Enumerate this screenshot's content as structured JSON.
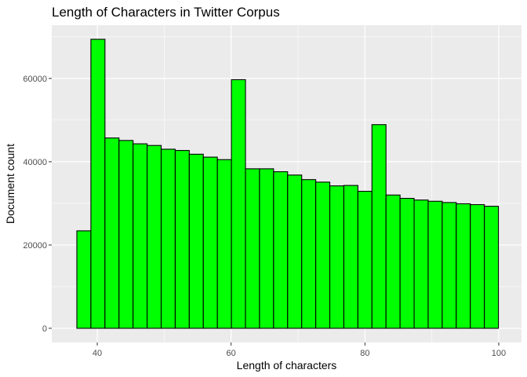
{
  "chart_data": {
    "type": "bar",
    "title": "Length of Characters in Twitter Corpus",
    "xlabel": "Length of characters",
    "ylabel": "Document count",
    "xlim": [
      33.2,
      103.4
    ],
    "ylim": [
      -3400,
      72800
    ],
    "x_ticks": [
      40,
      60,
      80,
      100
    ],
    "y_ticks": [
      0,
      20000,
      40000,
      60000
    ],
    "grid": true,
    "bin_width": 2.1,
    "bins": [
      {
        "x": 38.0,
        "value": 23400
      },
      {
        "x": 40.1,
        "value": 69400
      },
      {
        "x": 42.2,
        "value": 45700
      },
      {
        "x": 44.3,
        "value": 45100
      },
      {
        "x": 46.4,
        "value": 44300
      },
      {
        "x": 48.5,
        "value": 43900
      },
      {
        "x": 50.6,
        "value": 43000
      },
      {
        "x": 52.7,
        "value": 42700
      },
      {
        "x": 54.8,
        "value": 41800
      },
      {
        "x": 56.9,
        "value": 41100
      },
      {
        "x": 59.0,
        "value": 40500
      },
      {
        "x": 61.1,
        "value": 59700
      },
      {
        "x": 63.2,
        "value": 38300
      },
      {
        "x": 65.3,
        "value": 38300
      },
      {
        "x": 67.4,
        "value": 37600
      },
      {
        "x": 69.5,
        "value": 36800
      },
      {
        "x": 71.6,
        "value": 35700
      },
      {
        "x": 73.7,
        "value": 35100
      },
      {
        "x": 75.8,
        "value": 34200
      },
      {
        "x": 77.9,
        "value": 34300
      },
      {
        "x": 80.0,
        "value": 32900
      },
      {
        "x": 82.1,
        "value": 48900
      },
      {
        "x": 84.2,
        "value": 32000
      },
      {
        "x": 86.3,
        "value": 31200
      },
      {
        "x": 88.4,
        "value": 30800
      },
      {
        "x": 90.5,
        "value": 30500
      },
      {
        "x": 92.6,
        "value": 30200
      },
      {
        "x": 94.7,
        "value": 29900
      },
      {
        "x": 96.8,
        "value": 29700
      },
      {
        "x": 98.9,
        "value": 29300
      }
    ],
    "colors": {
      "bar_fill": "#00ff00",
      "bar_stroke": "#000000",
      "panel_bg": "#ebebeb",
      "grid_major": "#ffffff",
      "tick_text": "#4d4d4d"
    }
  }
}
